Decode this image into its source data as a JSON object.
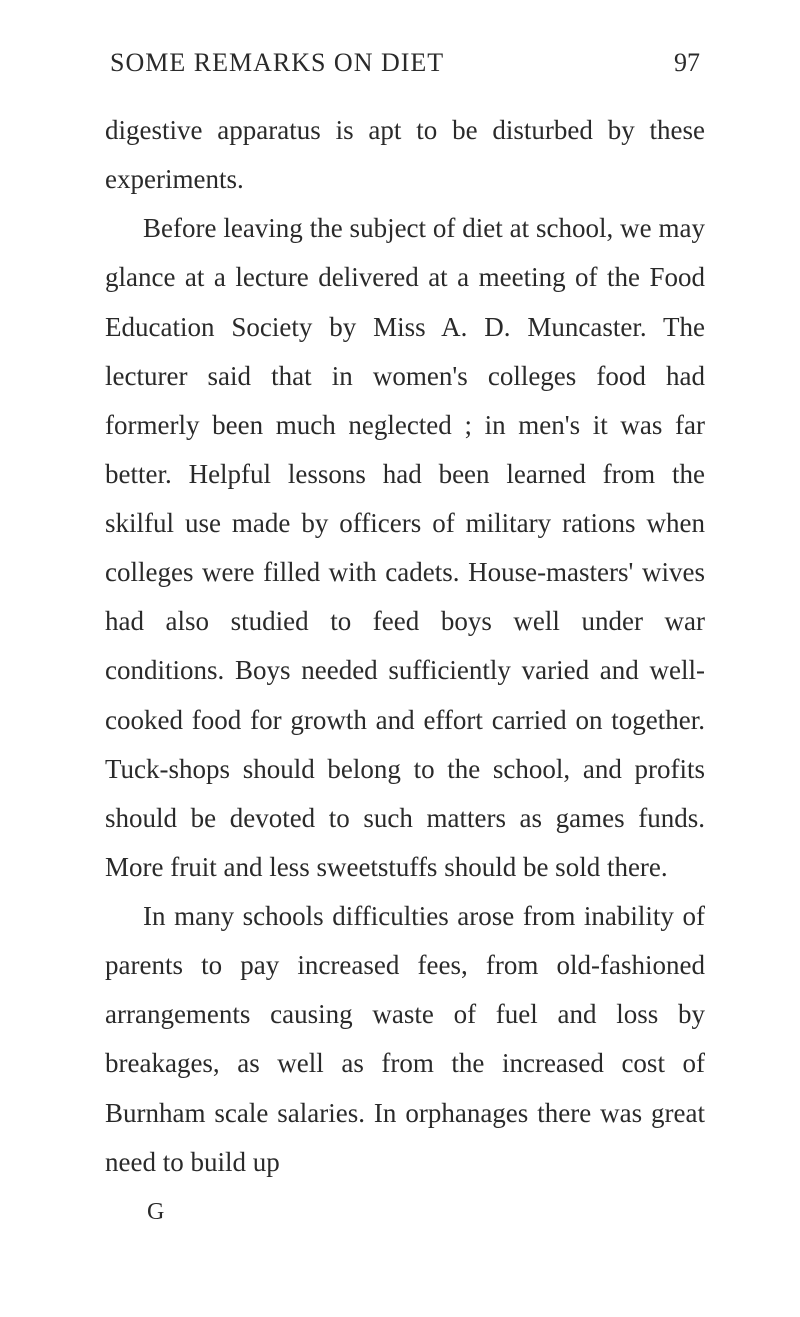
{
  "header": {
    "title": "SOME REMARKS ON DIET",
    "pageNumber": "97"
  },
  "paragraphs": {
    "p1": "digestive apparatus is apt to be disturbed by these experiments.",
    "p2": "Before leaving the subject of diet at school, we may glance at a lecture delivered at a meeting of the Food Education Society by Miss A. D. Muncaster. The lecturer said that in women's colleges food had formerly been much neglected ; in men's it was far better. Helpful lessons had been learned from the skilful use made by officers of military rations when colleges were filled with cadets. House-masters' wives had also studied to feed boys well under war conditions. Boys needed sufficiently varied and well-cooked food for growth and effort carried on together. Tuck-shops should belong to the school, and profits should be devoted to such matters as games funds. More fruit and less sweetstuffs should be sold there.",
    "p3": "In many schools difficulties arose from inability of parents to pay increased fees, from old-fashioned arrangements causing waste of fuel and loss by breakages, as well as from the increased cost of Burnham scale salaries. In orphanages there was great need to build up",
    "signature": "G"
  }
}
